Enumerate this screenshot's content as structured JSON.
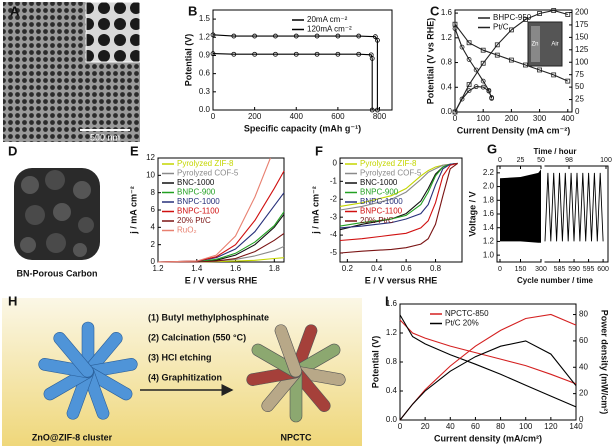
{
  "panel_labels": [
    "A",
    "B",
    "C",
    "D",
    "E",
    "F",
    "G",
    "H",
    "I"
  ],
  "images": {
    "A": {
      "scale_bar": "500 nm"
    },
    "C_inset": {
      "labels": [
        "Zn",
        "Air"
      ]
    },
    "D": {
      "caption": "BN-Porous Carbon"
    },
    "H": {
      "steps": [
        "(1) Butyl methylphosphinate",
        "(2) Calcination (550 °C)",
        "(3) HCl etching",
        "(4) Graphitization"
      ],
      "left_caption": "ZnO@ZIF-8 cluster",
      "right_caption": "NPCTC"
    }
  },
  "chart_data": [
    {
      "type": "line",
      "xlabel": "Specific capacity (mAh g⁻¹)",
      "ylabel": "Potential (V)",
      "xlim": [
        0,
        860
      ],
      "xticks": [
        0,
        200,
        400,
        600,
        800
      ],
      "ylim": [
        0,
        1.65
      ],
      "yticks": [
        {
          "value": 0,
          "label": "0.0"
        },
        0.3,
        0.6,
        0.9,
        1.2,
        1.5
      ],
      "series": [
        {
          "name": "20mA cm⁻²",
          "color": "#000000",
          "marker": "circle",
          "x": [
            0,
            100,
            200,
            300,
            400,
            500,
            600,
            700,
            780,
            790,
            790
          ],
          "values": [
            1.24,
            1.22,
            1.22,
            1.22,
            1.22,
            1.22,
            1.22,
            1.22,
            1.21,
            1.15,
            0
          ]
        },
        {
          "name": "120mA cm⁻²",
          "color": "#000000",
          "marker": "circle",
          "x": [
            0,
            100,
            200,
            300,
            400,
            500,
            600,
            700,
            760,
            765,
            765
          ],
          "values": [
            0.93,
            0.92,
            0.92,
            0.92,
            0.92,
            0.92,
            0.92,
            0.92,
            0.91,
            0.85,
            0
          ]
        }
      ]
    },
    {
      "type": "line",
      "xlabel": "Current Density (mA cm⁻²)",
      "ylabel": "Potential (V vs RHE)",
      "xlim": [
        0,
        415
      ],
      "xticks": [
        0,
        100,
        200,
        300,
        400
      ],
      "ylim": [
        0,
        1.65
      ],
      "yticks": [
        {
          "value": 0,
          "label": "0.0"
        },
        0.4,
        0.8,
        1.2,
        1.6
      ],
      "y2lim": [
        0,
        205
      ],
      "y2ticks": [
        0,
        25,
        50,
        75,
        100,
        125,
        150,
        175,
        200
      ],
      "series": [
        {
          "name": "BHPC-950",
          "color": "#222222",
          "marker": "square",
          "x": [
            0,
            50,
            100,
            150,
            200,
            250,
            300,
            350,
            400
          ],
          "values": [
            1.42,
            1.12,
            1.0,
            0.92,
            0.84,
            0.76,
            0.68,
            0.6,
            0.5
          ]
        },
        {
          "name": "Pt/C",
          "color": "#222222",
          "marker": "circle",
          "x": [
            0,
            25,
            50,
            75,
            100,
            120,
            130
          ],
          "values": [
            1.35,
            1.05,
            0.85,
            0.68,
            0.5,
            0.35,
            0.22
          ]
        },
        {
          "color": "#222222",
          "marker": "square",
          "axis": "y2",
          "x": [
            0,
            50,
            100,
            150,
            200,
            250,
            300,
            350,
            400
          ],
          "values": [
            0,
            55,
            98,
            135,
            165,
            186,
            198,
            204,
            196
          ]
        },
        {
          "color": "#222222",
          "marker": "circle",
          "axis": "y2",
          "x": [
            0,
            25,
            50,
            75,
            100,
            120,
            130
          ],
          "values": [
            0,
            26,
            43,
            51,
            50,
            42,
            29
          ]
        }
      ]
    },
    {
      "type": "line",
      "xlabel": "E / V versus RHE",
      "ylabel": "j / mA cm⁻²",
      "xlim": [
        1.2,
        1.85
      ],
      "xticks": [
        1.2,
        1.4,
        1.6,
        1.8
      ],
      "ylim": [
        0,
        12
      ],
      "yticks": [
        0,
        2,
        4,
        6,
        8,
        10,
        12
      ],
      "series": [
        {
          "name": "Pyrolyzed ZIF-8",
          "color": "#c4d600",
          "x": [
            1.2,
            1.4,
            1.5,
            1.6,
            1.7,
            1.8,
            1.85
          ],
          "values": [
            0,
            0,
            0.05,
            0.1,
            0.2,
            0.4,
            0.5
          ]
        },
        {
          "name": "Pyrolyzed COF-5",
          "color": "#8a8a8a",
          "x": [
            1.2,
            1.4,
            1.5,
            1.6,
            1.7,
            1.8,
            1.85
          ],
          "values": [
            0,
            0,
            0.1,
            0.3,
            0.7,
            1.3,
            1.8
          ]
        },
        {
          "name": "BNC-1000",
          "color": "#111111",
          "x": [
            1.2,
            1.4,
            1.5,
            1.6,
            1.7,
            1.8,
            1.85
          ],
          "values": [
            0,
            0.05,
            0.2,
            0.8,
            2,
            4,
            5.5
          ]
        },
        {
          "name": "BNPC-900",
          "color": "#22a022",
          "x": [
            1.2,
            1.4,
            1.5,
            1.6,
            1.7,
            1.8,
            1.85
          ],
          "values": [
            0,
            0.05,
            0.3,
            1,
            2.3,
            4.2,
            5.8
          ]
        },
        {
          "name": "BNPC-1000",
          "color": "#27307a",
          "x": [
            1.2,
            1.4,
            1.5,
            1.6,
            1.7,
            1.8,
            1.85
          ],
          "values": [
            0,
            0.1,
            0.5,
            1.5,
            3.5,
            6.5,
            8
          ]
        },
        {
          "name": "BNPC-1100",
          "color": "#d01010",
          "x": [
            1.2,
            1.4,
            1.5,
            1.6,
            1.7,
            1.8,
            1.85
          ],
          "values": [
            0,
            0.1,
            0.6,
            2,
            4.8,
            8.5,
            10.5
          ]
        },
        {
          "name": "20% Pt/C",
          "color": "#7a1414",
          "x": [
            1.2,
            1.4,
            1.5,
            1.6,
            1.7,
            1.8,
            1.85
          ],
          "values": [
            0,
            0,
            0.1,
            0.4,
            1.2,
            2.5,
            3.3
          ]
        },
        {
          "name": "RuO₂",
          "color": "#e88070",
          "x": [
            1.2,
            1.4,
            1.5,
            1.6,
            1.7,
            1.78
          ],
          "values": [
            0,
            0.1,
            0.8,
            3,
            7.5,
            12
          ]
        }
      ]
    },
    {
      "type": "line",
      "xlabel": "E / V versus RHE",
      "ylabel": "j / mA cm⁻²",
      "xlim": [
        0.15,
        0.98
      ],
      "xticks": [
        0.2,
        0.4,
        0.6,
        0.8
      ],
      "ylim": [
        -5.5,
        0.3
      ],
      "yticks": [
        -5,
        -4,
        -3,
        -2,
        -1,
        0
      ],
      "series": [
        {
          "name": "Pyrolyzed ZIF-8",
          "color": "#c4d600",
          "x": [
            0.15,
            0.3,
            0.5,
            0.6,
            0.7,
            0.75,
            0.8,
            0.85,
            0.9,
            0.95
          ],
          "values": [
            -2.4,
            -2.2,
            -1.8,
            -1.4,
            -0.7,
            -0.4,
            -0.2,
            -0.1,
            -0.05,
            0
          ]
        },
        {
          "name": "Pyrolyzed COF-5",
          "color": "#8a8a8a",
          "x": [
            0.15,
            0.3,
            0.5,
            0.6,
            0.7,
            0.75,
            0.8,
            0.85,
            0.9,
            0.95
          ],
          "values": [
            -2.6,
            -2.4,
            -2.0,
            -1.6,
            -0.9,
            -0.5,
            -0.3,
            -0.1,
            -0.05,
            0
          ]
        },
        {
          "name": "BNC-1000",
          "color": "#111111",
          "x": [
            0.15,
            0.3,
            0.5,
            0.6,
            0.7,
            0.75,
            0.8,
            0.85,
            0.9,
            0.95
          ],
          "values": [
            -3.7,
            -3.4,
            -3.1,
            -2.8,
            -2.1,
            -1.4,
            -0.6,
            -0.2,
            -0.05,
            0
          ]
        },
        {
          "name": "BNPC-900",
          "color": "#22a022",
          "x": [
            0.15,
            0.3,
            0.5,
            0.6,
            0.7,
            0.75,
            0.8,
            0.85,
            0.9,
            0.95
          ],
          "values": [
            -3.5,
            -3.3,
            -3.1,
            -2.9,
            -2.3,
            -1.6,
            -0.7,
            -0.2,
            -0.05,
            0
          ]
        },
        {
          "name": "BNPC-1000",
          "color": "#27307a",
          "x": [
            0.15,
            0.3,
            0.5,
            0.6,
            0.7,
            0.75,
            0.8,
            0.85,
            0.9,
            0.95
          ],
          "values": [
            -3.6,
            -3.5,
            -3.3,
            -3.1,
            -2.8,
            -2.3,
            -1.2,
            -0.3,
            -0.05,
            0
          ]
        },
        {
          "name": "BNPC-1100",
          "color": "#d01010",
          "x": [
            0.15,
            0.3,
            0.5,
            0.6,
            0.7,
            0.75,
            0.8,
            0.85,
            0.9,
            0.95
          ],
          "values": [
            -4.3,
            -4.2,
            -4.0,
            -3.9,
            -3.6,
            -3.2,
            -2.2,
            -0.7,
            -0.1,
            0
          ]
        },
        {
          "name": "20% Pt/C",
          "color": "#7a1414",
          "x": [
            0.15,
            0.3,
            0.5,
            0.6,
            0.7,
            0.75,
            0.8,
            0.85,
            0.9,
            0.95
          ],
          "values": [
            -5.0,
            -4.9,
            -4.8,
            -4.7,
            -4.5,
            -4.2,
            -3.4,
            -1.8,
            -0.3,
            0
          ]
        }
      ]
    },
    {
      "type": "cycling",
      "xlabel": "Cycle number / time",
      "x2label": "Time / hour",
      "ylabel": "Voltage / V",
      "xlim": [
        0,
        300
      ],
      "xticks": [
        0,
        150,
        300
      ],
      "xlim_break": [
        580,
        601
      ],
      "xticks_break": [
        585,
        590,
        595,
        600
      ],
      "x2lim": [
        0,
        50
      ],
      "x2ticks": [
        0,
        25,
        50
      ],
      "x2lim_break": [
        96.7,
        100
      ],
      "x2ticks_break": [
        98,
        100
      ],
      "ylim": [
        0.9,
        2.3
      ],
      "yticks": [
        {
          "value": 1,
          "label": "1.0"
        },
        1.2,
        1.4,
        1.6,
        1.8,
        {
          "value": 2,
          "label": "2.0"
        },
        2.2
      ],
      "color": "#000000",
      "band": {
        "x": [
          0,
          150,
          280,
          300
        ],
        "upper": [
          2.12,
          2.14,
          2.2,
          2.25
        ],
        "lower": [
          1.2,
          1.2,
          1.18,
          1.18
        ]
      },
      "series": [
        {
          "x": [
            580,
            581,
            582,
            583,
            584,
            585,
            586,
            587,
            588,
            589,
            590,
            591,
            592,
            593,
            594,
            595,
            596,
            597,
            598,
            599,
            600
          ],
          "values": [
            1.2,
            2.2,
            1.2,
            2.2,
            1.2,
            2.2,
            1.2,
            2.2,
            1.2,
            2.2,
            1.2,
            2.2,
            1.2,
            2.2,
            1.2,
            2.2,
            1.2,
            2.2,
            1.2,
            2.2,
            1.2
          ]
        }
      ]
    },
    {
      "type": "line",
      "xlabel": "Current density (mA/cm²)",
      "ylabel": "Potential (V)",
      "y2label": "Power density (mW/cm²)",
      "xlim": [
        0,
        140
      ],
      "xticks": [
        0,
        20,
        40,
        60,
        80,
        100,
        120,
        140
      ],
      "ylim": [
        0,
        1.6
      ],
      "yticks": [
        {
          "value": 0,
          "label": "0.0"
        },
        0.4,
        0.8,
        1.2,
        1.6
      ],
      "y2lim": [
        0,
        88
      ],
      "y2ticks": [
        0,
        20,
        40,
        60,
        80
      ],
      "series": [
        {
          "name": "NPCTC-850",
          "color": "#d42020",
          "x": [
            0,
            10,
            20,
            40,
            60,
            80,
            100,
            120,
            140
          ],
          "values": [
            1.38,
            1.2,
            1.13,
            1.02,
            0.93,
            0.84,
            0.75,
            0.63,
            0.5
          ]
        },
        {
          "name": "Pt/C 20%",
          "color": "#000000",
          "x": [
            0,
            10,
            20,
            40,
            60,
            80,
            100,
            120,
            140
          ],
          "values": [
            1.45,
            1.15,
            1.05,
            0.9,
            0.77,
            0.63,
            0.48,
            0.33,
            0.18
          ]
        },
        {
          "color": "#d42020",
          "axis": "y2",
          "x": [
            0,
            10,
            20,
            40,
            60,
            80,
            100,
            120,
            140
          ],
          "values": [
            0,
            12,
            23,
            41,
            56,
            68,
            77,
            80,
            72
          ]
        },
        {
          "color": "#000000",
          "axis": "y2",
          "x": [
            0,
            10,
            20,
            40,
            60,
            80,
            100,
            120,
            140
          ],
          "values": [
            0,
            12,
            22,
            37,
            48,
            56,
            60,
            50,
            26
          ]
        }
      ]
    }
  ]
}
